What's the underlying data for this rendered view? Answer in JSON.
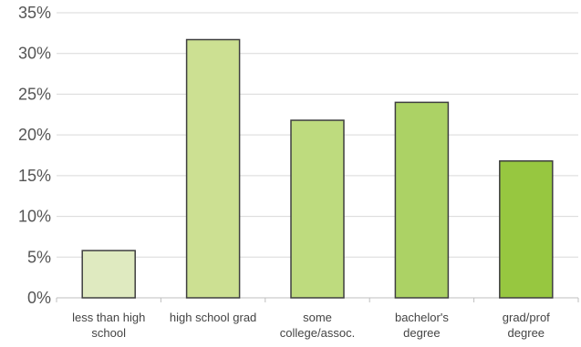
{
  "chart_data": {
    "type": "bar",
    "title": "",
    "xlabel": "",
    "ylabel": "",
    "categories": [
      [
        "less than high",
        "school"
      ],
      [
        "high school grad"
      ],
      [
        "some",
        "college/assoc."
      ],
      [
        "bachelor's",
        "degree"
      ],
      [
        "grad/prof",
        "degree"
      ]
    ],
    "values": [
      5.8,
      31.7,
      21.8,
      24.0,
      16.8
    ],
    "bar_colors": [
      "#dfeac0",
      "#cce092",
      "#bedb7e",
      "#acd265",
      "#97c740"
    ],
    "ylim": [
      0,
      35
    ],
    "yticks": [
      0,
      5,
      10,
      15,
      20,
      25,
      30,
      35
    ],
    "ytick_labels": [
      "0%",
      "5%",
      "10%",
      "15%",
      "20%",
      "25%",
      "30%",
      "35%"
    ],
    "grid": true,
    "legend": "none"
  }
}
